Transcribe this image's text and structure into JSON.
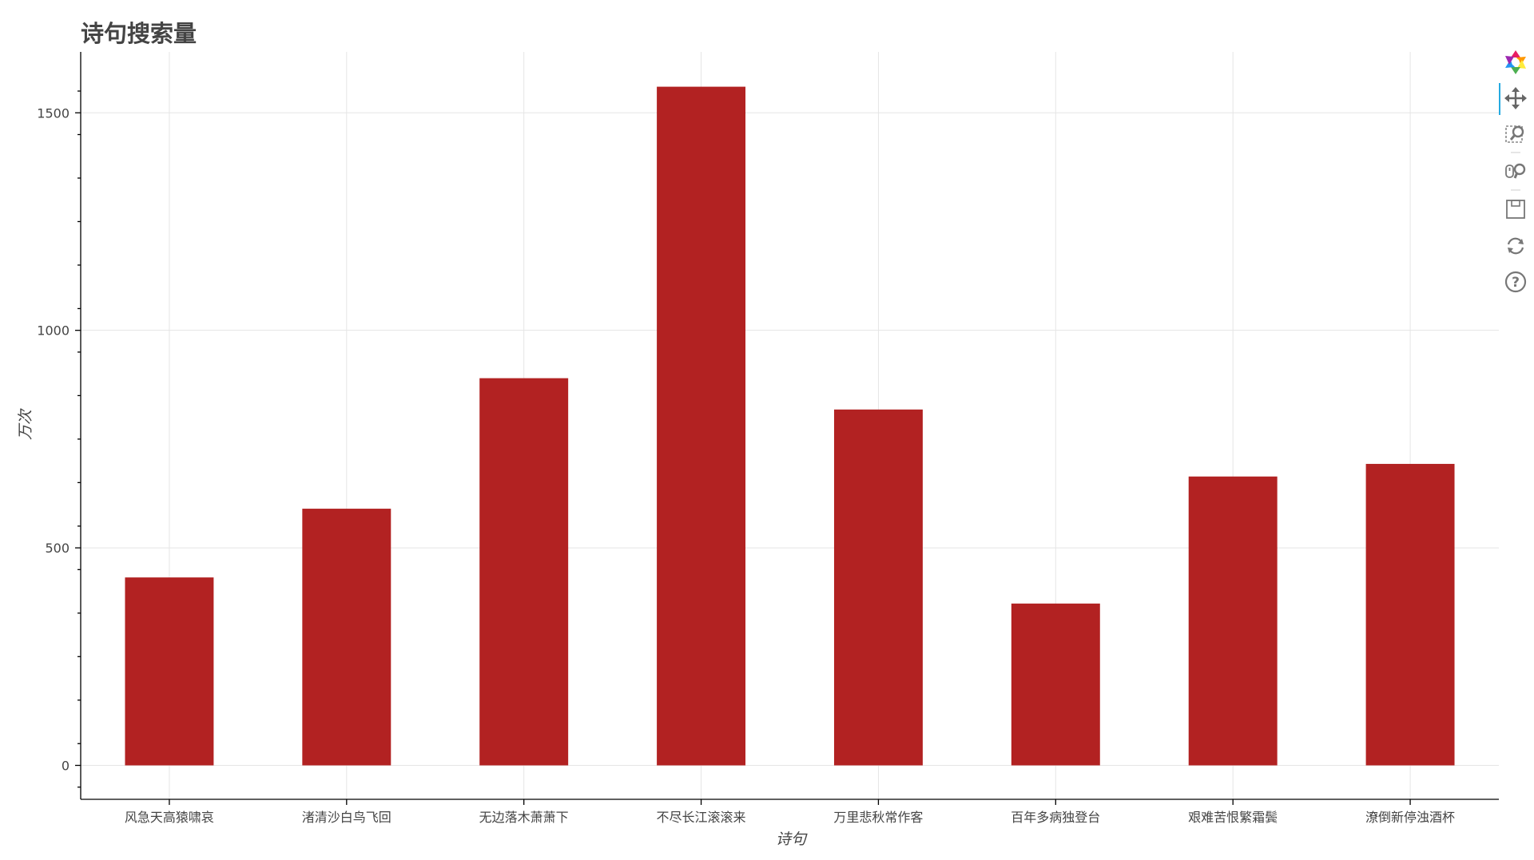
{
  "chart_data": {
    "type": "bar",
    "title": "诗句搜索量",
    "xlabel": "诗句",
    "ylabel": "万次",
    "categories": [
      "风急天高猿啸哀",
      "渚清沙白鸟飞回",
      "无边落木萧萧下",
      "不尽长江滚滚来",
      "万里悲秋常作客",
      "百年多病独登台",
      "艰难苦恨繁霜鬓",
      "潦倒新停浊酒杯"
    ],
    "values": [
      432,
      590,
      890,
      1560,
      818,
      372,
      664,
      693
    ],
    "ylim": [
      -78,
      1640
    ],
    "yticks": [
      0,
      500,
      1000,
      1500
    ],
    "grid": true,
    "bar_color": "#b22222"
  },
  "toolbar": {
    "tools": [
      {
        "name": "bokeh-logo-icon",
        "title": "Bokeh"
      },
      {
        "name": "pan-tool-icon",
        "title": "Pan"
      },
      {
        "name": "box-zoom-tool-icon",
        "title": "Box Zoom"
      },
      {
        "name": "wheel-zoom-tool-icon",
        "title": "Wheel Zoom"
      },
      {
        "name": "save-tool-icon",
        "title": "Save"
      },
      {
        "name": "reset-tool-icon",
        "title": "Reset"
      },
      {
        "name": "help-tool-icon",
        "title": "Help"
      }
    ],
    "active_color": "#26aae1"
  }
}
